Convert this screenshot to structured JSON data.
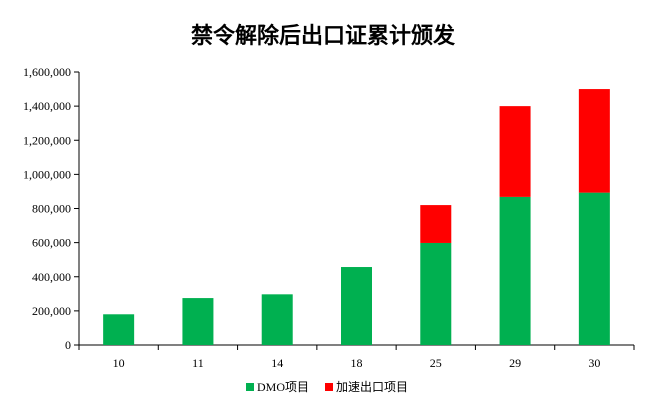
{
  "chart_data": {
    "type": "bar",
    "stacked": true,
    "title": "禁令解除后出口证累计颁发",
    "xlabel": "",
    "ylabel": "",
    "categories": [
      "10",
      "11",
      "14",
      "18",
      "25",
      "29",
      "30"
    ],
    "series": [
      {
        "name": "DMO项目",
        "color": "#00b050",
        "values": [
          180000,
          275000,
          297000,
          457000,
          598000,
          868000,
          893000
        ]
      },
      {
        "name": "加速出口项目",
        "color": "#ff0000",
        "values": [
          0,
          0,
          0,
          0,
          222000,
          532000,
          607000
        ]
      }
    ],
    "ylim": [
      0,
      1600000
    ],
    "yticks": [
      0,
      200000,
      400000,
      600000,
      800000,
      1000000,
      1200000,
      1400000,
      1600000
    ],
    "ytick_labels": [
      "0",
      "200,000",
      "400,000",
      "600,000",
      "800,000",
      "1,000,000",
      "1,200,000",
      "1,400,000",
      "1,600,000"
    ],
    "grid": false,
    "legend_position": "bottom"
  }
}
